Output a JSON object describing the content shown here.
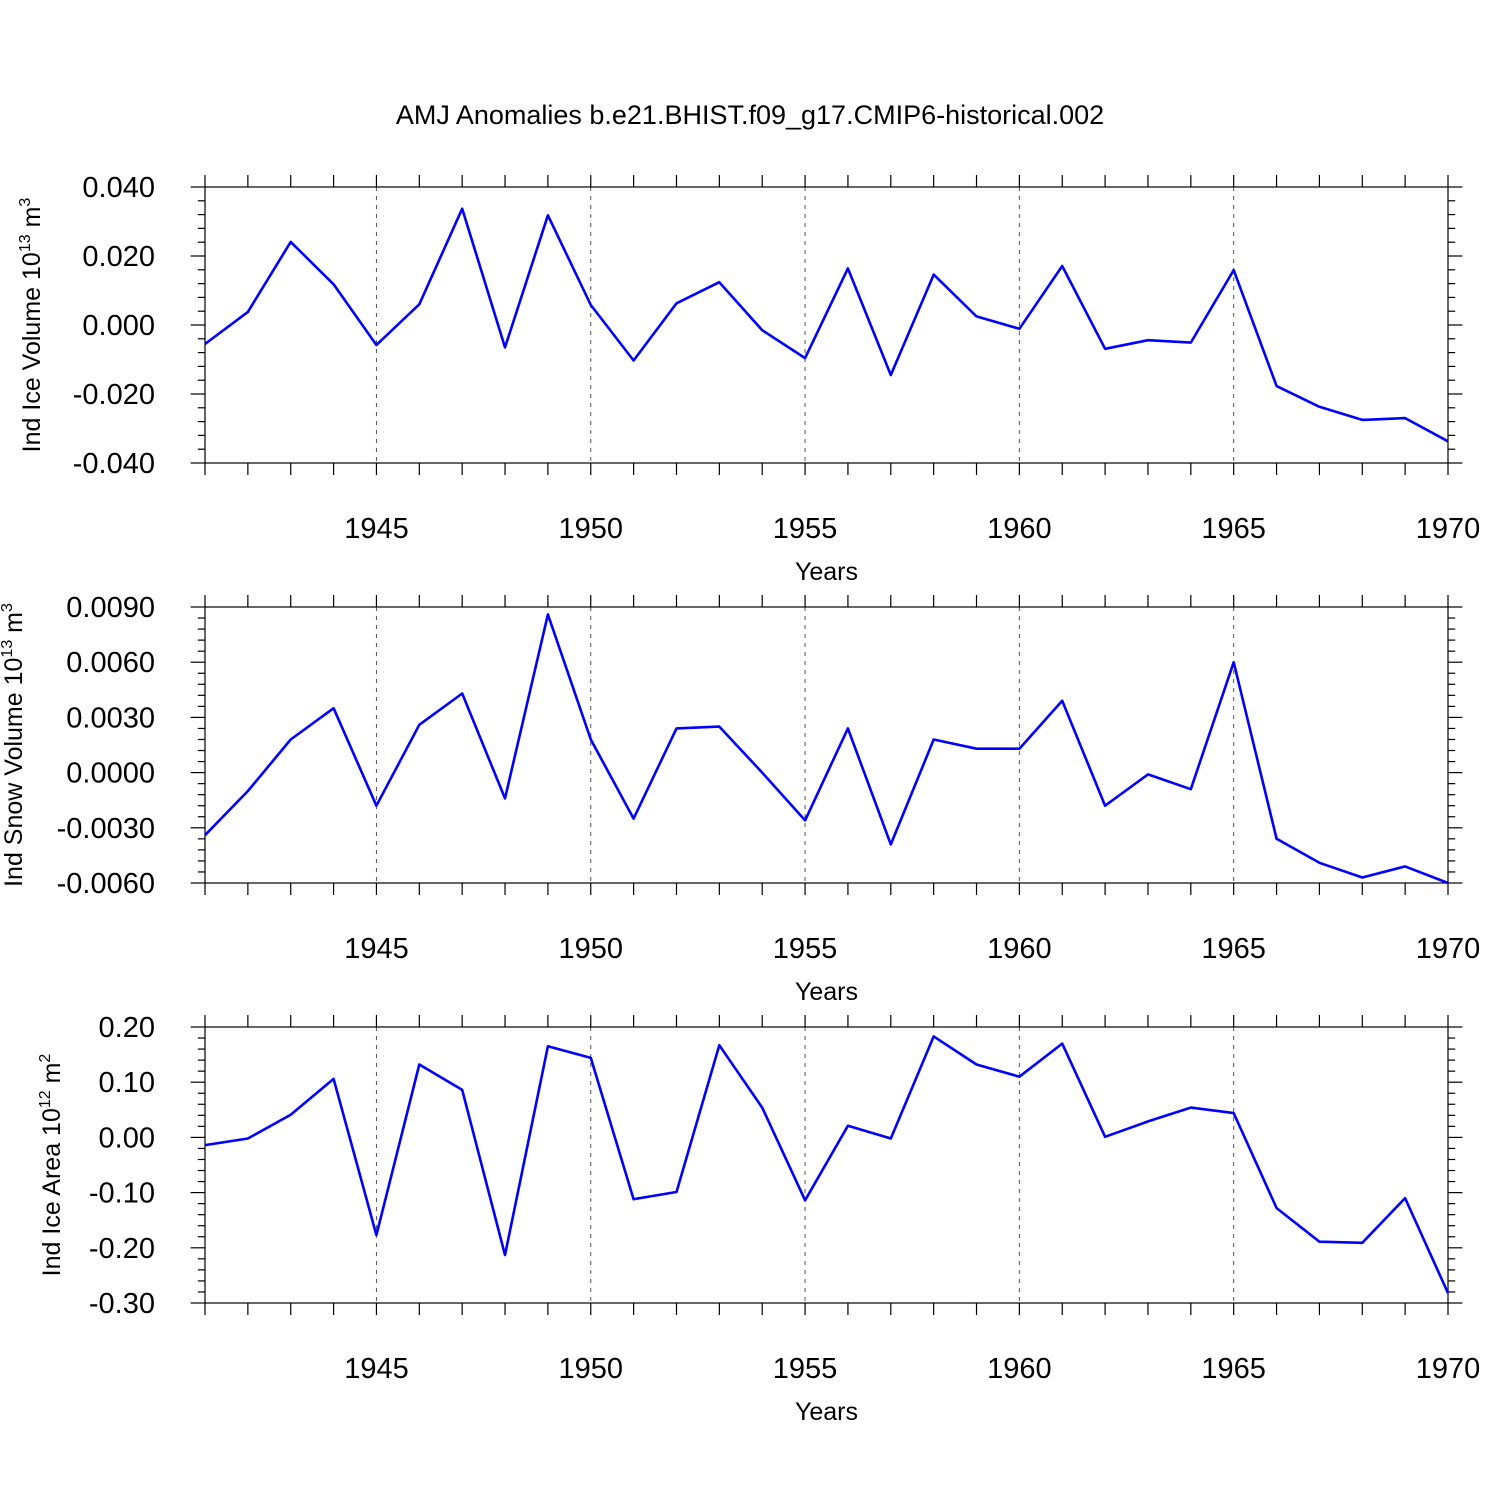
{
  "figure": {
    "title": "AMJ Anomalies b.e21.BHIST.f09_g17.CMIP6-historical.002"
  },
  "colors": {
    "series": "#0000ff",
    "axis": "#000000"
  },
  "chart_data": [
    {
      "type": "line",
      "title": "AMJ Anomalies b.e21.BHIST.f09_g17.CMIP6-historical.002",
      "xlabel": "Years",
      "ylabel": "Ind Ice Volume 10",
      "ylabel_exponent": "13",
      "ylabel_unit": " m",
      "ylabel_unit_exponent": "3",
      "xlim": [
        1941,
        1970
      ],
      "ylim": [
        -0.04,
        0.04
      ],
      "xticks": [
        1945,
        1950,
        1955,
        1960,
        1965,
        1970
      ],
      "xtick_labels": [
        "1945",
        "1950",
        "1955",
        "1960",
        "1965",
        "1970"
      ],
      "yticks": [
        -0.04,
        -0.02,
        0.0,
        0.02,
        0.04
      ],
      "ytick_labels": [
        "-0.040",
        "-0.020",
        "0.000",
        "0.020",
        "0.040"
      ],
      "series": [
        {
          "name": "Ind Ice Volume",
          "x": [
            1941,
            1942,
            1943,
            1944,
            1945,
            1946,
            1947,
            1948,
            1949,
            1950,
            1951,
            1952,
            1953,
            1954,
            1955,
            1956,
            1957,
            1958,
            1959,
            1960,
            1961,
            1962,
            1963,
            1964,
            1965,
            1966,
            1967,
            1968,
            1969,
            1970
          ],
          "values": [
            -0.0055,
            0.0038,
            0.0241,
            0.0118,
            -0.0058,
            0.006,
            0.0337,
            -0.0065,
            0.0318,
            0.0058,
            -0.0103,
            0.0063,
            0.0124,
            -0.0015,
            -0.0096,
            0.0164,
            -0.0145,
            0.0146,
            0.0025,
            -0.0011,
            0.0171,
            -0.0069,
            -0.0044,
            -0.0051,
            0.0159,
            -0.0177,
            -0.0237,
            -0.0275,
            -0.027,
            -0.0337
          ]
        }
      ]
    },
    {
      "type": "line",
      "xlabel": "Years",
      "ylabel": "Ind Snow Volume 10",
      "ylabel_exponent": "13",
      "ylabel_unit": " m",
      "ylabel_unit_exponent": "3",
      "xlim": [
        1941,
        1970
      ],
      "ylim": [
        -0.006,
        0.009
      ],
      "xticks": [
        1945,
        1950,
        1955,
        1960,
        1965,
        1970
      ],
      "xtick_labels": [
        "1945",
        "1950",
        "1955",
        "1960",
        "1965",
        "1970"
      ],
      "yticks": [
        -0.006,
        -0.003,
        0.0,
        0.003,
        0.006,
        0.009
      ],
      "ytick_labels": [
        "-0.0060",
        "-0.0030",
        "0.0000",
        "0.0030",
        "0.0060",
        "0.0090"
      ],
      "series": [
        {
          "name": "Ind Snow Volume",
          "x": [
            1941,
            1942,
            1943,
            1944,
            1945,
            1946,
            1947,
            1948,
            1949,
            1950,
            1951,
            1952,
            1953,
            1954,
            1955,
            1956,
            1957,
            1958,
            1959,
            1960,
            1961,
            1962,
            1963,
            1964,
            1965,
            1966,
            1967,
            1968,
            1969,
            1970
          ],
          "values": [
            -0.0034,
            -0.001,
            0.0018,
            0.0035,
            -0.0018,
            0.0026,
            0.0043,
            -0.0014,
            0.0086,
            0.0018,
            -0.0025,
            0.0024,
            0.0025,
            0.0,
            -0.0026,
            0.0024,
            -0.0039,
            0.0018,
            0.0013,
            0.0013,
            0.0039,
            -0.0018,
            -0.0001,
            -0.0009,
            0.006,
            -0.0036,
            -0.0049,
            -0.0057,
            -0.0051,
            -0.006
          ]
        }
      ]
    },
    {
      "type": "line",
      "xlabel": "Years",
      "ylabel": "Ind Ice Area 10",
      "ylabel_exponent": "12",
      "ylabel_unit": " m",
      "ylabel_unit_exponent": "2",
      "xlim": [
        1941,
        1970
      ],
      "ylim": [
        -0.3,
        0.2
      ],
      "xticks": [
        1945,
        1950,
        1955,
        1960,
        1965,
        1970
      ],
      "xtick_labels": [
        "1945",
        "1950",
        "1955",
        "1960",
        "1965",
        "1970"
      ],
      "yticks": [
        -0.3,
        -0.2,
        -0.1,
        0.0,
        0.1,
        0.2
      ],
      "ytick_labels": [
        "-0.30",
        "-0.20",
        "-0.10",
        "0.00",
        "0.10",
        "0.20"
      ],
      "series": [
        {
          "name": "Ind Ice Area",
          "x": [
            1941,
            1942,
            1943,
            1944,
            1945,
            1946,
            1947,
            1948,
            1949,
            1950,
            1951,
            1952,
            1953,
            1954,
            1955,
            1956,
            1957,
            1958,
            1959,
            1960,
            1961,
            1962,
            1963,
            1964,
            1965,
            1966,
            1967,
            1968,
            1969,
            1970
          ],
          "values": [
            -0.014,
            -0.002,
            0.041,
            0.106,
            -0.177,
            0.132,
            0.086,
            -0.213,
            0.165,
            0.144,
            -0.112,
            -0.099,
            0.167,
            0.054,
            -0.114,
            0.021,
            -0.002,
            0.183,
            0.132,
            0.11,
            0.17,
            0.001,
            0.029,
            0.054,
            0.044,
            -0.128,
            -0.189,
            -0.191,
            -0.11,
            -0.282
          ]
        }
      ]
    }
  ]
}
